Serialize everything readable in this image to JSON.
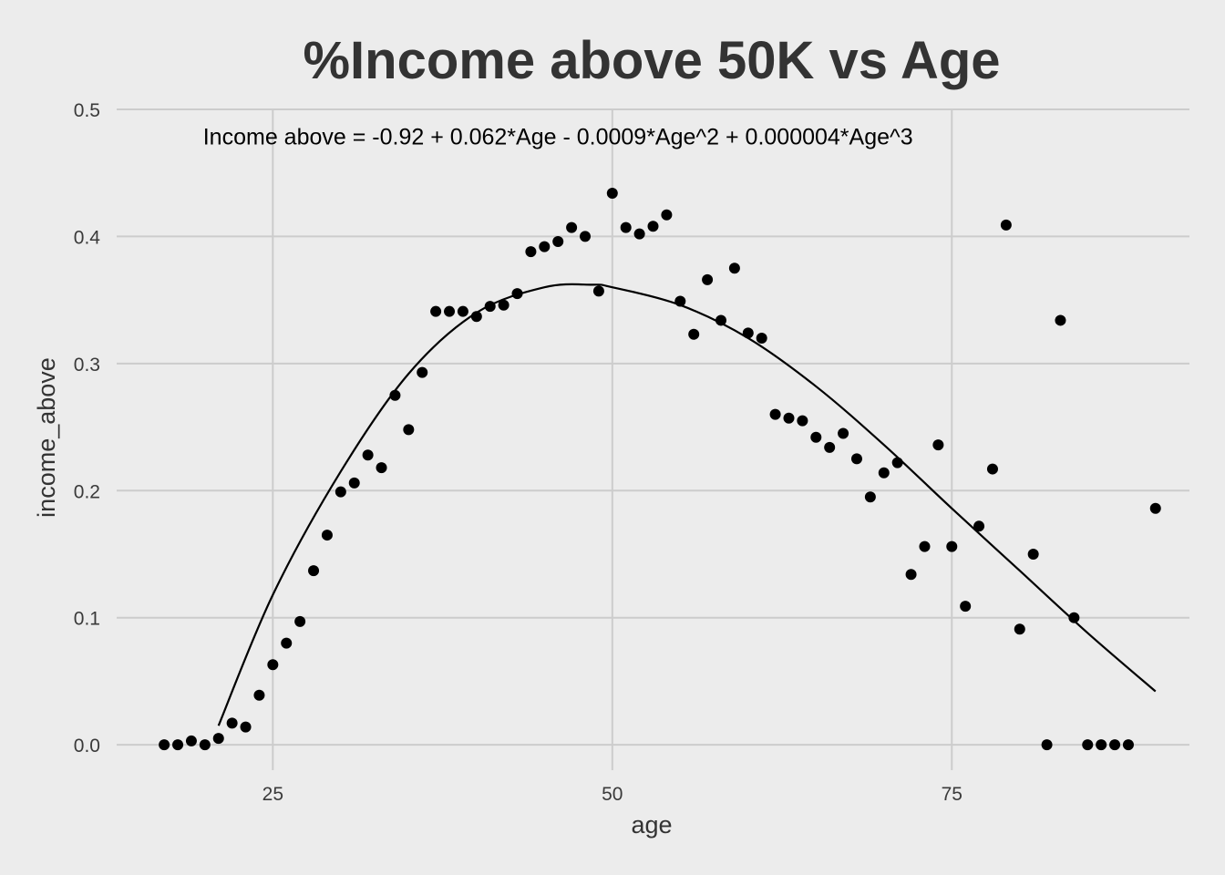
{
  "chart_data": {
    "type": "scatter",
    "title": "%Income above 50K vs Age",
    "xlabel": "age",
    "ylabel": "income_above",
    "xlim": [
      13.5,
      92.5
    ],
    "ylim": [
      -0.02,
      0.5
    ],
    "x_ticks": [
      25,
      50,
      75
    ],
    "x_tick_labels": [
      "25",
      "50",
      "75"
    ],
    "y_ticks": [
      0,
      0.1,
      0.2,
      0.3,
      0.4,
      0.5
    ],
    "y_tick_labels": [
      "0.0",
      "0.1",
      "0.2",
      "0.3",
      "0.4",
      "0.5"
    ],
    "grid": true,
    "annotation": {
      "text": "Income above = -0.92 + 0.062*Age - 0.0009*Age^2 + 0.000004*Age^3",
      "x": 46,
      "y": 0.478
    },
    "fit_curve": {
      "type": "cubic",
      "x_range": [
        21,
        90
      ],
      "points": [
        [
          21,
          0.015
        ],
        [
          25,
          0.118
        ],
        [
          30,
          0.215
        ],
        [
          35,
          0.292
        ],
        [
          40,
          0.34
        ],
        [
          45,
          0.36
        ],
        [
          48.5,
          0.362
        ],
        [
          50,
          0.36
        ],
        [
          55,
          0.346
        ],
        [
          60,
          0.32
        ],
        [
          65,
          0.282
        ],
        [
          70,
          0.236
        ],
        [
          75,
          0.186
        ],
        [
          80,
          0.137
        ],
        [
          85,
          0.088
        ],
        [
          90,
          0.042
        ]
      ]
    },
    "points": [
      [
        17,
        0.0
      ],
      [
        18,
        0.0
      ],
      [
        19,
        0.003
      ],
      [
        20,
        0.0
      ],
      [
        21,
        0.005
      ],
      [
        22,
        0.017
      ],
      [
        23,
        0.014
      ],
      [
        24,
        0.039
      ],
      [
        25,
        0.063
      ],
      [
        26,
        0.08
      ],
      [
        27,
        0.097
      ],
      [
        28,
        0.137
      ],
      [
        29,
        0.165
      ],
      [
        30,
        0.199
      ],
      [
        31,
        0.206
      ],
      [
        32,
        0.228
      ],
      [
        33,
        0.218
      ],
      [
        34,
        0.275
      ],
      [
        35,
        0.248
      ],
      [
        36,
        0.293
      ],
      [
        37,
        0.341
      ],
      [
        38,
        0.341
      ],
      [
        39,
        0.341
      ],
      [
        40,
        0.337
      ],
      [
        41,
        0.345
      ],
      [
        42,
        0.346
      ],
      [
        43,
        0.355
      ],
      [
        44,
        0.388
      ],
      [
        45,
        0.392
      ],
      [
        46,
        0.396
      ],
      [
        47,
        0.407
      ],
      [
        48,
        0.4
      ],
      [
        49,
        0.357
      ],
      [
        50,
        0.434
      ],
      [
        51,
        0.407
      ],
      [
        52,
        0.402
      ],
      [
        53,
        0.408
      ],
      [
        54,
        0.417
      ],
      [
        55,
        0.349
      ],
      [
        56,
        0.323
      ],
      [
        57,
        0.366
      ],
      [
        58,
        0.334
      ],
      [
        59,
        0.375
      ],
      [
        60,
        0.324
      ],
      [
        61,
        0.32
      ],
      [
        62,
        0.26
      ],
      [
        63,
        0.257
      ],
      [
        64,
        0.255
      ],
      [
        65,
        0.242
      ],
      [
        66,
        0.234
      ],
      [
        67,
        0.245
      ],
      [
        68,
        0.225
      ],
      [
        69,
        0.195
      ],
      [
        70,
        0.214
      ],
      [
        71,
        0.222
      ],
      [
        72,
        0.134
      ],
      [
        73,
        0.156
      ],
      [
        74,
        0.236
      ],
      [
        75,
        0.156
      ],
      [
        76,
        0.109
      ],
      [
        77,
        0.172
      ],
      [
        78,
        0.217
      ],
      [
        79,
        0.409
      ],
      [
        80,
        0.091
      ],
      [
        81,
        0.15
      ],
      [
        82,
        0.0
      ],
      [
        83,
        0.334
      ],
      [
        84,
        0.1
      ],
      [
        85,
        0.0
      ],
      [
        86,
        0.0
      ],
      [
        87,
        0.0
      ],
      [
        88,
        0.0
      ],
      [
        90,
        0.186
      ]
    ],
    "colors": {
      "background": "#ececec",
      "grid": "#cccccc",
      "points": "#000000",
      "curve": "#000000"
    }
  }
}
